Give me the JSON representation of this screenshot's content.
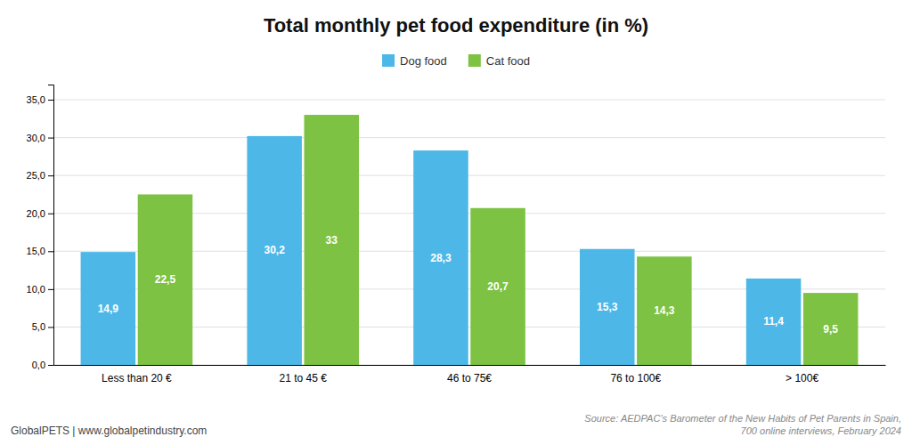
{
  "chart_data": {
    "type": "bar",
    "title": "Total monthly pet food expenditure (in %)",
    "categories": [
      "Less than 20 €",
      "21 to 45 €",
      "46 to 75€",
      "76 to 100€",
      "> 100€"
    ],
    "series": [
      {
        "name": "Dog food",
        "color": "#4db8e8",
        "values": [
          14.9,
          30.2,
          28.3,
          15.3,
          11.4
        ],
        "value_labels": [
          "14,9",
          "30,2",
          "28,3",
          "15,3",
          "11,4"
        ]
      },
      {
        "name": "Cat food",
        "color": "#7dc242",
        "values": [
          22.5,
          33.0,
          20.7,
          14.3,
          9.5
        ],
        "value_labels": [
          "22,5",
          "33",
          "20,7",
          "14,3",
          "9,5"
        ]
      }
    ],
    "ylim": [
      0,
      37
    ],
    "yticks": [
      {
        "value": 0.0,
        "label": "0,0"
      },
      {
        "value": 5.0,
        "label": "5,0"
      },
      {
        "value": 10.0,
        "label": "10,0"
      },
      {
        "value": 15.0,
        "label": "15,0"
      },
      {
        "value": 20.0,
        "label": "20,0"
      },
      {
        "value": 25.0,
        "label": "25,0"
      },
      {
        "value": 30.0,
        "label": "30,0"
      },
      {
        "value": 35.0,
        "label": "35,0"
      }
    ],
    "grid": true,
    "legend": "top",
    "data_labels": true,
    "annotations": [
      "GlobalPETS | www.globalpetindustry.com",
      "Source: AEDPAC’s Barometer of the New Habits of Pet Parents in Spain,",
      "700 online interviews, February 2024"
    ]
  }
}
